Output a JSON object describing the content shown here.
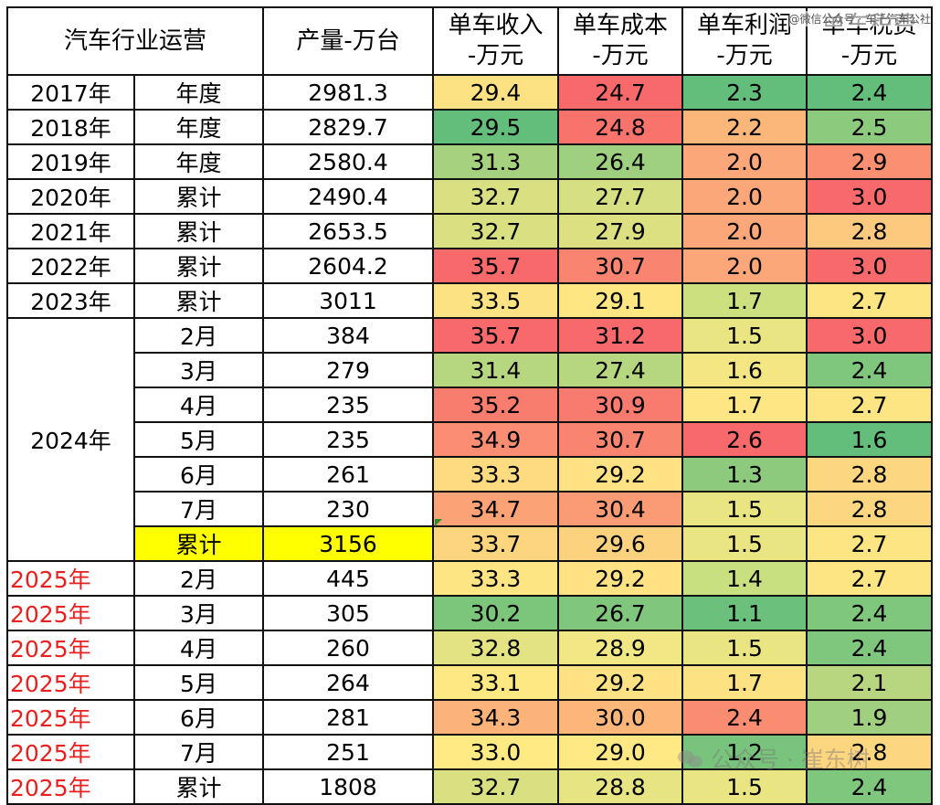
{
  "header": {
    "title": "汽车行业运营",
    "output": "产量-万台",
    "revenue_l1": "单车收入",
    "revenue_l2": "-万元",
    "cost_l1": "单车成本",
    "cost_l2": "-万元",
    "profit_l1": "单车利润",
    "profit_l2": "-万元",
    "tax_l1": "单车税费",
    "tax_l2": "-万元"
  },
  "watermark": {
    "top": "@微信公众号 · 车千汽车公社",
    "bottom": "公众号 · 崔东树"
  },
  "rows": [
    {
      "year": "2017年",
      "period": "年度",
      "output": "2981.3",
      "revenue": "29.4",
      "cost": "24.7",
      "profit": "2.3",
      "tax": "2.4"
    },
    {
      "year": "2018年",
      "period": "年度",
      "output": "2829.7",
      "revenue": "29.5",
      "cost": "24.8",
      "profit": "2.2",
      "tax": "2.5"
    },
    {
      "year": "2019年",
      "period": "年度",
      "output": "2580.4",
      "revenue": "31.3",
      "cost": "26.4",
      "profit": "2.0",
      "tax": "2.9"
    },
    {
      "year": "2020年",
      "period": "累计",
      "output": "2490.4",
      "revenue": "32.7",
      "cost": "27.7",
      "profit": "2.0",
      "tax": "3.0"
    },
    {
      "year": "2021年",
      "period": "累计",
      "output": "2653.5",
      "revenue": "32.7",
      "cost": "27.9",
      "profit": "2.0",
      "tax": "2.8"
    },
    {
      "year": "2022年",
      "period": "累计",
      "output": "2604.2",
      "revenue": "35.7",
      "cost": "30.7",
      "profit": "2.0",
      "tax": "3.0"
    },
    {
      "year": "2023年",
      "period": "累计",
      "output": "3011",
      "revenue": "33.5",
      "cost": "29.1",
      "profit": "1.7",
      "tax": "2.7"
    },
    {
      "year": "2024年",
      "period": "2月",
      "output": "384",
      "revenue": "35.7",
      "cost": "31.2",
      "profit": "1.5",
      "tax": "3.0"
    },
    {
      "year": "",
      "period": "3月",
      "output": "279",
      "revenue": "31.4",
      "cost": "27.4",
      "profit": "1.6",
      "tax": "2.4"
    },
    {
      "year": "",
      "period": "4月",
      "output": "235",
      "revenue": "35.2",
      "cost": "30.9",
      "profit": "1.7",
      "tax": "2.7"
    },
    {
      "year": "",
      "period": "5月",
      "output": "235",
      "revenue": "34.9",
      "cost": "30.7",
      "profit": "2.6",
      "tax": "1.6"
    },
    {
      "year": "",
      "period": "6月",
      "output": "261",
      "revenue": "33.3",
      "cost": "29.2",
      "profit": "1.3",
      "tax": "2.8"
    },
    {
      "year": "",
      "period": "7月",
      "output": "230",
      "revenue": "34.7",
      "cost": "30.4",
      "profit": "1.5",
      "tax": "2.8"
    },
    {
      "year": "",
      "period": "累计",
      "output": "3156",
      "revenue": "33.7",
      "cost": "29.6",
      "profit": "1.5",
      "tax": "2.7"
    },
    {
      "year": "2025年",
      "period": "2月",
      "output": "445",
      "revenue": "33.3",
      "cost": "29.2",
      "profit": "1.4",
      "tax": "2.7"
    },
    {
      "year": "2025年",
      "period": "3月",
      "output": "305",
      "revenue": "30.2",
      "cost": "26.7",
      "profit": "1.1",
      "tax": "2.4"
    },
    {
      "year": "2025年",
      "period": "4月",
      "output": "260",
      "revenue": "32.8",
      "cost": "28.9",
      "profit": "1.5",
      "tax": "2.4"
    },
    {
      "year": "2025年",
      "period": "5月",
      "output": "264",
      "revenue": "33.1",
      "cost": "29.2",
      "profit": "1.7",
      "tax": "2.1"
    },
    {
      "year": "2025年",
      "period": "6月",
      "output": "281",
      "revenue": "34.3",
      "cost": "30.0",
      "profit": "2.4",
      "tax": "1.9"
    },
    {
      "year": "2025年",
      "period": "7月",
      "output": "251",
      "revenue": "33.0",
      "cost": "29.0",
      "profit": "1.2",
      "tax": "2.8"
    },
    {
      "year": "2025年",
      "period": "累计",
      "output": "1808",
      "revenue": "32.7",
      "cost": "28.8",
      "profit": "1.5",
      "tax": "2.4"
    }
  ],
  "cell_colors": [
    [
      "#fde283",
      "#f8696b",
      "#63be7b",
      "#63be7b"
    ],
    [
      "#63be7b",
      "#f8736c",
      "#fbb77a",
      "#8ccb7e"
    ],
    [
      "#a6d27f",
      "#9fd07f",
      "#fca77a",
      "#fa8f72"
    ],
    [
      "#d9e082",
      "#d6df82",
      "#fca77a",
      "#f8696b"
    ],
    [
      "#d9e082",
      "#dce081",
      "#fca77a",
      "#fdc97e"
    ],
    [
      "#f8696b",
      "#f98470",
      "#fca77a",
      "#f8696b"
    ],
    [
      "#fde283",
      "#fee683",
      "#cde07f",
      "#fde583"
    ],
    [
      "#f8696b",
      "#f8696b",
      "#e9e582",
      "#f8696b"
    ],
    [
      "#b7d680",
      "#b6d680",
      "#f4e783",
      "#7fc77d"
    ],
    [
      "#f97d6f",
      "#f97b6f",
      "#fde683",
      "#fde583"
    ],
    [
      "#fa8d72",
      "#f98470",
      "#f8696b",
      "#63be7b"
    ],
    [
      "#feda81",
      "#fee283",
      "#8dca7e",
      "#fdd680"
    ],
    [
      "#fba276",
      "#fb9b75",
      "#e9e582",
      "#fdd680"
    ],
    [
      "#fdd57f",
      "#fdd27f",
      "#e9e582",
      "#fde583"
    ],
    [
      "#fee583",
      "#fee283",
      "#c9e081",
      "#fde583"
    ],
    [
      "#7cc67c",
      "#80c77d",
      "#6bc17b",
      "#7fc77d"
    ],
    [
      "#e4e383",
      "#f1e784",
      "#e9e582",
      "#7fc77d"
    ],
    [
      "#fee883",
      "#fee283",
      "#fde283",
      "#b8d680"
    ],
    [
      "#fcb379",
      "#fcb67a",
      "#fa8c72",
      "#a0d07f"
    ],
    [
      "#ffea84",
      "#fee984",
      "#79c47c",
      "#fdd680"
    ],
    [
      "#d9e082",
      "#e6e483",
      "#e9e582",
      "#7fc77d"
    ]
  ]
}
